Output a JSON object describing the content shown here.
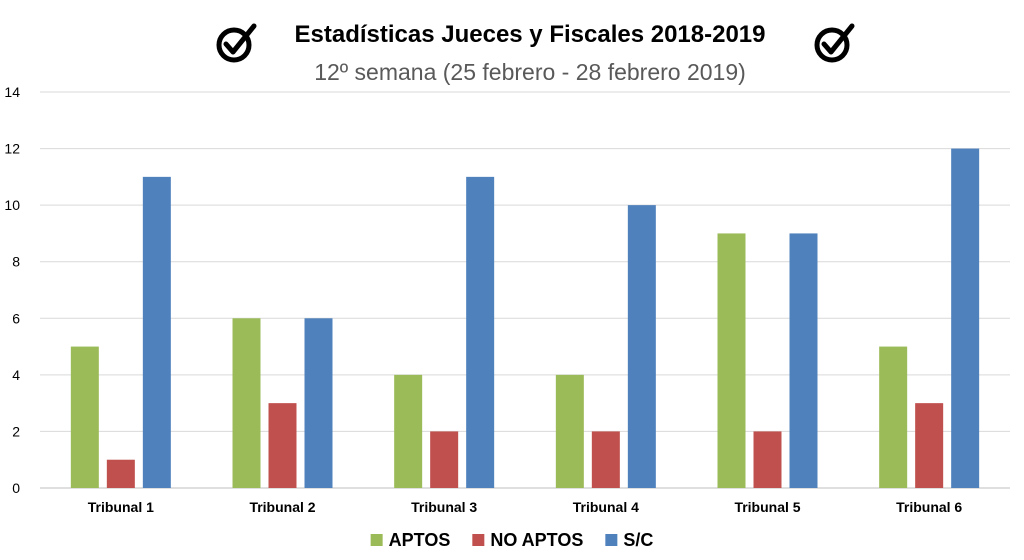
{
  "chart_data": {
    "type": "bar",
    "title": "Estadísticas Jueces y Fiscales 2018-2019",
    "subtitle": "12º semana (25 febrero - 28 febrero 2019)",
    "categories": [
      "Tribunal 1",
      "Tribunal 2",
      "Tribunal 3",
      "Tribunal 4",
      "Tribunal 5",
      "Tribunal 6"
    ],
    "series": [
      {
        "name": "APTOS",
        "color": "#9BBB59",
        "values": [
          5,
          6,
          4,
          4,
          9,
          5
        ]
      },
      {
        "name": "NO APTOS",
        "color": "#C0504D",
        "values": [
          1,
          3,
          2,
          2,
          2,
          3
        ]
      },
      {
        "name": "S/C",
        "color": "#4F81BD",
        "values": [
          11,
          6,
          11,
          10,
          9,
          12
        ]
      }
    ],
    "ylim": [
      0,
      14
    ],
    "yticks": [
      0,
      2,
      4,
      6,
      8,
      10,
      12,
      14
    ],
    "grid": true,
    "legend_position": "bottom",
    "icons": [
      "check-circle-icon",
      "check-circle-icon"
    ]
  }
}
